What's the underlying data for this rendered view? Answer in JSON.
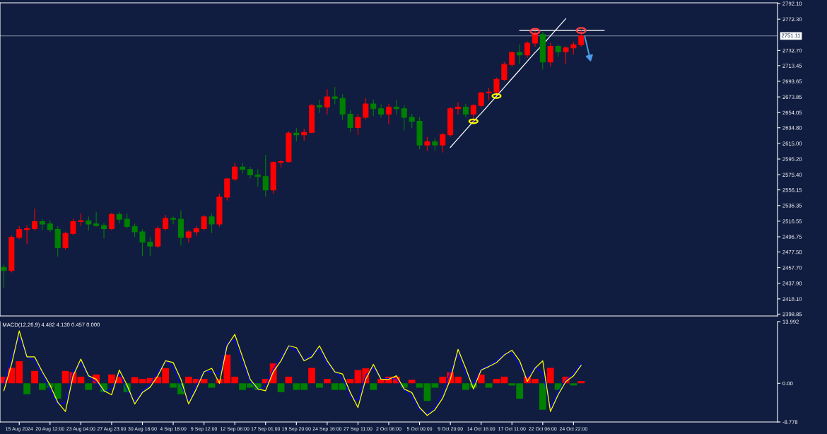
{
  "chart_data": [
    {
      "type": "candlestick",
      "categories": [
        null,
        null,
        "15 Aug 2024",
        null,
        null,
        null,
        "20 Aug 12:00",
        null,
        null,
        null,
        "23 Aug 04:00",
        null,
        null,
        null,
        "27 Aug 23:00",
        null,
        null,
        null,
        "30 Aug 18:00",
        null,
        null,
        null,
        "4 Sep 18:00",
        null,
        null,
        null,
        "9 Sep 12:00",
        null,
        null,
        null,
        "12 Sep 06:00",
        null,
        null,
        null,
        "17 Sep 01:00",
        null,
        null,
        null,
        "19 Sep 20:00",
        null,
        null,
        null,
        "24 Sep 16:00",
        null,
        null,
        null,
        "27 Sep 11:00",
        null,
        null,
        null,
        "2 Oct 06:00",
        null,
        null,
        null,
        "5 Oct 00:00",
        null,
        null,
        null,
        "9 Oct 20:00",
        null,
        null,
        null,
        "14 Oct 16:00",
        null,
        null,
        null,
        "17 Oct 11:00",
        null,
        null,
        null,
        "22 Oct 06:00",
        null,
        null,
        null,
        "24 Oct 22:00",
        null,
        null,
        null,
        null,
        null,
        null,
        null,
        null,
        null,
        null,
        null,
        null,
        null,
        null,
        null,
        null,
        null,
        null,
        null,
        null,
        null,
        null,
        null,
        null,
        null,
        null
      ],
      "ohlc": [
        [
          2458,
          2461,
          2432,
          2454
        ],
        [
          2454,
          2498,
          2452,
          2496
        ],
        [
          2496,
          2510,
          2494,
          2506
        ],
        [
          2506,
          2511,
          2488,
          2507
        ],
        [
          2507,
          2532,
          2505,
          2516
        ],
        [
          2516,
          2519,
          2506,
          2513
        ],
        [
          2513,
          2517,
          2503,
          2506
        ],
        [
          2506,
          2510,
          2472,
          2483
        ],
        [
          2483,
          2503,
          2481,
          2501
        ],
        [
          2501,
          2519,
          2499,
          2516
        ],
        [
          2516,
          2526,
          2511,
          2517
        ],
        [
          2517,
          2522,
          2505,
          2513
        ],
        [
          2513,
          2528,
          2510,
          2511
        ],
        [
          2511,
          2514,
          2495,
          2507
        ],
        [
          2507,
          2527,
          2505,
          2525
        ],
        [
          2525,
          2528,
          2514,
          2519
        ],
        [
          2519,
          2526,
          2508,
          2510
        ],
        [
          2510,
          2513,
          2497,
          2503
        ],
        [
          2503,
          2506,
          2473,
          2490
        ],
        [
          2490,
          2496,
          2473,
          2485
        ],
        [
          2485,
          2510,
          2483,
          2507
        ],
        [
          2507,
          2524,
          2505,
          2520
        ],
        [
          2520,
          2522,
          2513,
          2519
        ],
        [
          2519,
          2530,
          2486,
          2496
        ],
        [
          2496,
          2505,
          2490,
          2503
        ],
        [
          2503,
          2510,
          2498,
          2507
        ],
        [
          2507,
          2524,
          2505,
          2522
        ],
        [
          2522,
          2526,
          2502,
          2513
        ],
        [
          2513,
          2551,
          2510,
          2547
        ],
        [
          2547,
          2571,
          2543,
          2570
        ],
        [
          2570,
          2590,
          2568,
          2585
        ],
        [
          2585,
          2590,
          2577,
          2582
        ],
        [
          2582,
          2585,
          2571,
          2575
        ],
        [
          2575,
          2582,
          2561,
          2573
        ],
        [
          2573,
          2600,
          2548,
          2556
        ],
        [
          2556,
          2592,
          2552,
          2591
        ],
        [
          2591,
          2594,
          2585,
          2592
        ],
        [
          2592,
          2630,
          2591,
          2628
        ],
        [
          2628,
          2634,
          2618,
          2626
        ],
        [
          2626,
          2633,
          2619,
          2629
        ],
        [
          2629,
          2665,
          2628,
          2663
        ],
        [
          2663,
          2670,
          2654,
          2661
        ],
        [
          2661,
          2683,
          2652,
          2674
        ],
        [
          2674,
          2686,
          2665,
          2672
        ],
        [
          2672,
          2677,
          2645,
          2652
        ],
        [
          2652,
          2657,
          2630,
          2635
        ],
        [
          2635,
          2652,
          2626,
          2648
        ],
        [
          2648,
          2672,
          2646,
          2665
        ],
        [
          2665,
          2670,
          2650,
          2659
        ],
        [
          2659,
          2664,
          2648,
          2652
        ],
        [
          2652,
          2665,
          2640,
          2661
        ],
        [
          2661,
          2670,
          2652,
          2659
        ],
        [
          2659,
          2663,
          2632,
          2648
        ],
        [
          2648,
          2652,
          2635,
          2643
        ],
        [
          2643,
          2648,
          2608,
          2613
        ],
        [
          2613,
          2623,
          2606,
          2617
        ],
        [
          2617,
          2621,
          2606,
          2613
        ],
        [
          2613,
          2628,
          2604,
          2626
        ],
        [
          2626,
          2661,
          2624,
          2659
        ],
        [
          2659,
          2667,
          2652,
          2661
        ],
        [
          2661,
          2665,
          2648,
          2652
        ],
        [
          2652,
          2665,
          2643,
          2663
        ],
        [
          2663,
          2680,
          2661,
          2679
        ],
        [
          2679,
          2685,
          2670,
          2680
        ],
        [
          2680,
          2698,
          2677,
          2696
        ],
        [
          2696,
          2718,
          2694,
          2715
        ],
        [
          2715,
          2731,
          2712,
          2730
        ],
        [
          2730,
          2740,
          2716,
          2727
        ],
        [
          2727,
          2744,
          2724,
          2742
        ],
        [
          2742,
          2757,
          2738,
          2753
        ],
        [
          2753,
          2756,
          2709,
          2718
        ],
        [
          2718,
          2742,
          2713,
          2738
        ],
        [
          2738,
          2740,
          2725,
          2731
        ],
        [
          2731,
          2738,
          2716,
          2736
        ],
        [
          2736,
          2743,
          2728,
          2740
        ],
        [
          2740,
          2758,
          2738,
          2751.11
        ],
        null,
        null,
        null,
        null,
        null,
        null,
        null,
        null,
        null,
        null,
        null,
        null,
        null,
        null,
        null,
        null,
        null,
        null,
        null,
        null,
        null,
        null,
        null,
        null,
        null
      ],
      "colors": [
        "#008000",
        "#ff0000",
        "#ff0000",
        "#ff0000",
        "#ff0000",
        "#008000",
        "#008000",
        "#008000",
        "#ff0000",
        "#ff0000",
        "#ff0000",
        "#008000",
        "#008000",
        "#008000",
        "#ff0000",
        "#008000",
        "#008000",
        "#008000",
        "#008000",
        "#008000",
        "#ff0000",
        "#ff0000",
        "#008000",
        "#008000",
        "#ff0000",
        "#ff0000",
        "#ff0000",
        "#008000",
        "#ff0000",
        "#ff0000",
        "#ff0000",
        "#008000",
        "#008000",
        "#008000",
        "#008000",
        "#ff0000",
        "#ff0000",
        "#ff0000",
        "#008000",
        "#ff0000",
        "#ff0000",
        "#008000",
        "#ff0000",
        "#008000",
        "#008000",
        "#008000",
        "#ff0000",
        "#ff0000",
        "#008000",
        "#008000",
        "#ff0000",
        "#008000",
        "#008000",
        "#008000",
        "#008000",
        "#ff0000",
        "#008000",
        "#ff0000",
        "#ff0000",
        "#ff0000",
        "#008000",
        "#ff0000",
        "#ff0000",
        "#ff0000",
        "#ff0000",
        "#ff0000",
        "#ff0000",
        "#008000",
        "#ff0000",
        "#ff0000",
        "#008000",
        "#ff0000",
        "#008000",
        "#ff0000",
        "#ff0000",
        "#ff0000",
        null,
        null,
        null,
        null,
        null,
        null,
        null,
        null,
        null,
        null,
        null,
        null,
        null,
        null,
        null,
        null,
        null,
        null,
        null,
        null,
        null,
        null,
        null,
        null,
        null
      ],
      "series": [
        {
          "type": "line",
          "color": "#ffffff",
          "values": [
            null,
            null,
            null,
            null,
            null,
            null,
            null,
            null,
            null,
            null,
            null,
            null,
            null,
            null,
            null,
            null,
            null,
            null,
            null,
            null,
            null,
            null,
            null,
            null,
            null,
            null,
            null,
            null,
            null,
            null,
            null,
            null,
            null,
            null,
            null,
            null,
            null,
            null,
            null,
            null,
            null,
            null,
            null,
            null,
            null,
            null,
            null,
            null,
            null,
            null,
            null,
            null,
            null,
            null,
            null,
            null,
            null,
            null,
            2610,
            2621,
            2632,
            2643,
            2653,
            2664,
            2675,
            2686,
            2697,
            2708,
            2719,
            2730,
            2740,
            2751,
            2762,
            2773,
            null,
            null,
            null,
            null,
            null,
            null,
            null,
            null,
            null,
            null,
            null,
            null,
            null,
            null,
            null,
            null,
            null,
            null,
            null,
            null,
            null,
            null,
            null,
            null,
            null,
            null,
            null
          ]
        },
        {
          "type": "line",
          "color": "#ffffff",
          "values": [
            null,
            null,
            null,
            null,
            null,
            null,
            null,
            null,
            null,
            null,
            null,
            null,
            null,
            null,
            null,
            null,
            null,
            null,
            null,
            null,
            null,
            null,
            null,
            null,
            null,
            null,
            null,
            null,
            null,
            null,
            null,
            null,
            null,
            null,
            null,
            null,
            null,
            null,
            null,
            null,
            null,
            null,
            null,
            null,
            null,
            null,
            null,
            null,
            null,
            null,
            null,
            null,
            null,
            null,
            null,
            null,
            null,
            null,
            null,
            null,
            null,
            null,
            null,
            null,
            null,
            null,
            null,
            2758,
            2758,
            2758,
            2758,
            2758,
            2758,
            2758,
            2758,
            2758,
            2758,
            2758,
            2758,
            null,
            null,
            null,
            null,
            null,
            null,
            null,
            null,
            null,
            null,
            null,
            null,
            null,
            null,
            null,
            null,
            null,
            null,
            null,
            null,
            null,
            null
          ]
        }
      ],
      "ylim": [
        2396.5,
        2793
      ],
      "yticks": [
        {
          "value": 2792.1,
          "label": "2792.10"
        },
        {
          "value": 2772.3,
          "label": "2772.30"
        },
        {
          "value": 2732.7,
          "label": "2732.70"
        },
        2713.45,
        2693.65,
        2673.85,
        2654.05,
        {
          "value": 2634.8,
          "label": "2634.80"
        },
        {
          "value": 2615,
          "label": "2615.00"
        },
        {
          "value": 2595.2,
          "label": "2595.20"
        },
        {
          "value": 2575.4,
          "label": "2575.40"
        },
        2556.15,
        2536.35,
        2516.55,
        2496.75,
        {
          "value": 2477.5,
          "label": "2477.50"
        },
        {
          "value": 2457.7,
          "label": "2457.70"
        },
        {
          "value": 2437.9,
          "label": "2437.90"
        },
        {
          "value": 2418.1,
          "label": "2418.10"
        },
        2398.85
      ],
      "ref_lines": [
        {
          "axis": "y",
          "value": 2751.11,
          "label": "2751.11",
          "color": "#7f8aa3"
        }
      ],
      "tick_labels": "y"
    },
    {
      "type": "bar",
      "title": "MACD(12,26,9) 4.482 4.130 0.457 0.000",
      "categories": [
        null,
        null,
        "15 Aug 2024",
        null,
        null,
        null,
        "20 Aug 12:00",
        null,
        null,
        null,
        "23 Aug 04:00",
        null,
        null,
        null,
        "27 Aug 23:00",
        null,
        null,
        null,
        "30 Aug 18:00",
        null,
        null,
        null,
        "4 Sep 18:00",
        null,
        null,
        null,
        "9 Sep 12:00",
        null,
        null,
        null,
        "12 Sep 06:00",
        null,
        null,
        null,
        "17 Sep 01:00",
        null,
        null,
        null,
        "19 Sep 20:00",
        null,
        null,
        null,
        "24 Sep 16:00",
        null,
        null,
        null,
        "27 Sep 11:00",
        null,
        null,
        null,
        "2 Oct 06:00",
        null,
        null,
        null,
        "5 Oct 00:00",
        null,
        null,
        null,
        "9 Oct 20:00",
        null,
        null,
        null,
        "14 Oct 16:00",
        null,
        null,
        null,
        "17 Oct 11:00",
        null,
        null,
        null,
        "22 Oct 06:00",
        null,
        null,
        null,
        "24 Oct 22:00",
        null,
        null,
        null,
        null,
        null,
        null,
        null,
        null,
        null,
        null,
        null,
        null,
        null,
        null,
        null,
        null,
        null,
        null,
        null,
        null,
        null,
        null,
        null,
        null,
        null,
        null
      ],
      "series": [
        {
          "type": "bar",
          "values": [
            1.5,
            3.5,
            5.0,
            -2.5,
            2.8,
            -1.5,
            -1.0,
            -3.5,
            2.8,
            2.5,
            1.5,
            -1.5,
            2.0,
            -2.0,
            2.0,
            1.5,
            -2.0,
            1.4,
            1.0,
            1.2,
            1.5,
            3.4,
            -1.0,
            -2.5,
            1.5,
            1.0,
            1.0,
            -1.0,
            1.0,
            6.5,
            1.5,
            -1.5,
            -1.0,
            -1.5,
            1.0,
            4.5,
            -2.0,
            1.5,
            -1.5,
            -1.5,
            3.5,
            -1.0,
            1.0,
            -1.5,
            -1.5,
            1.0,
            3.0,
            3.4,
            -1.5,
            1.0,
            1.5,
            1.5,
            -1.0,
            0.8,
            -1.0,
            -4.0,
            -1.0,
            1.5,
            2.5,
            1.5,
            -1.5,
            -1.0,
            2.0,
            -1.0,
            1.0,
            1.5,
            -0.5,
            -3.5,
            1.5,
            1.0,
            -6.0,
            3.5,
            -1.5,
            1.5,
            -0.5,
            0.5,
            null,
            null,
            null,
            null,
            null,
            null,
            null,
            null,
            null,
            null,
            null,
            null,
            null,
            null,
            null,
            null,
            null,
            null,
            null,
            null,
            null,
            null,
            null,
            null,
            null
          ],
          "colors": [
            "#ff0000",
            "#ff0000",
            "#ff0000",
            "#008000",
            "#ff0000",
            "#008000",
            "#008000",
            "#008000",
            "#ff0000",
            "#ff0000",
            "#ff0000",
            "#008000",
            "#ff0000",
            "#008000",
            "#ff0000",
            "#ff0000",
            "#008000",
            "#ff0000",
            "#ff0000",
            "#ff0000",
            "#ff0000",
            "#ff0000",
            "#008000",
            "#008000",
            "#ff0000",
            "#ff0000",
            "#ff0000",
            "#008000",
            "#ff0000",
            "#ff0000",
            "#ff0000",
            "#008000",
            "#008000",
            "#008000",
            "#ff0000",
            "#ff0000",
            "#008000",
            "#ff0000",
            "#008000",
            "#008000",
            "#ff0000",
            "#008000",
            "#ff0000",
            "#008000",
            "#008000",
            "#ff0000",
            "#ff0000",
            "#ff0000",
            "#008000",
            "#ff0000",
            "#ff0000",
            "#ff0000",
            "#008000",
            "#ff0000",
            "#008000",
            "#008000",
            "#008000",
            "#ff0000",
            "#ff0000",
            "#ff0000",
            "#008000",
            "#008000",
            "#ff0000",
            "#008000",
            "#ff0000",
            "#ff0000",
            "#008000",
            "#008000",
            "#ff0000",
            "#ff0000",
            "#008000",
            "#ff0000",
            "#008000",
            "#ff0000",
            "#008000",
            "#ff0000",
            null,
            null,
            null,
            null,
            null,
            null,
            null,
            null,
            null,
            null,
            null,
            null,
            null,
            null,
            null,
            null,
            null,
            null,
            null,
            null,
            null,
            null,
            null,
            null,
            null
          ]
        },
        {
          "type": "line",
          "color": "#0000ff",
          "values": [
            -0.2,
            6.2,
            10.4,
            6.0,
            5.2,
            1.9,
            -1.4,
            -4.8,
            -4.4,
            2.7,
            4.6,
            1.5,
            0.3,
            -1.9,
            -1.2,
            2.2,
            -1.5,
            -4.1,
            -1.8,
            -0.2,
            2.6,
            5.0,
            3.8,
            -0.5,
            -3.9,
            -0.4,
            2.8,
            2.6,
            2.1,
            9.2,
            9.8,
            4.7,
            0.4,
            -1.4,
            -0.6,
            3.2,
            6.0,
            8.4,
            7.4,
            5.3,
            6.6,
            7.7,
            4.5,
            2.5,
            1.1,
            -3.0,
            -3.9,
            1.8,
            3.5,
            0.9,
            1.1,
            1.0,
            -1.5,
            -3.0,
            -6.0,
            -7.0,
            -5.4,
            -2.3,
            2.6,
            6.6,
            2.2,
            -0.2,
            3.2,
            4.0,
            5.1,
            6.7,
            6.9,
            3.9,
            1.2,
            3.8,
            2.2,
            -5.5,
            -1.9,
            0.7,
            2.3,
            4.5,
            null,
            null,
            null,
            null,
            null,
            null,
            null,
            null,
            null,
            null,
            null,
            null,
            null,
            null,
            null,
            null,
            null,
            null,
            null,
            null,
            null,
            null,
            null,
            null,
            null
          ]
        },
        {
          "type": "line",
          "color": "#ffff00",
          "values": [
            -1.7,
            4.3,
            11.9,
            6.0,
            6.0,
            2.6,
            -0.4,
            -4.3,
            -6.4,
            1.7,
            5.5,
            1.7,
            0.9,
            -1.7,
            -2.6,
            3.0,
            -0.4,
            -4.7,
            -2.1,
            -0.9,
            1.7,
            5.1,
            4.7,
            0.9,
            -4.7,
            -1.3,
            2.6,
            3.4,
            0.0,
            8.5,
            11.1,
            6.0,
            0.9,
            -1.3,
            -1.7,
            2.6,
            5.1,
            8.5,
            8.1,
            5.1,
            6.0,
            8.5,
            5.1,
            2.6,
            2.1,
            -2.1,
            -5.5,
            0.9,
            4.3,
            0.9,
            0.9,
            1.7,
            -1.3,
            -2.1,
            -5.5,
            -7.3,
            -6.0,
            -3.4,
            0.9,
            7.7,
            3.4,
            -1.3,
            3.0,
            3.8,
            4.7,
            6.4,
            7.5,
            5.1,
            0.4,
            3.4,
            5.1,
            -6.4,
            -2.6,
            0.4,
            1.7,
            4.1,
            null,
            null,
            null,
            null,
            null,
            null,
            null,
            null,
            null,
            null,
            null,
            null,
            null,
            null,
            null,
            null,
            null,
            null,
            null,
            null,
            null,
            null,
            null,
            null,
            null
          ]
        }
      ],
      "ylim": [
        -8.778,
        13.992
      ],
      "yticks": [
        {
          "value": 13.992,
          "label": "13.992"
        },
        {
          "value": 0,
          "label": "0.00"
        },
        {
          "value": -8.778,
          "label": "-8.778"
        }
      ]
    }
  ]
}
